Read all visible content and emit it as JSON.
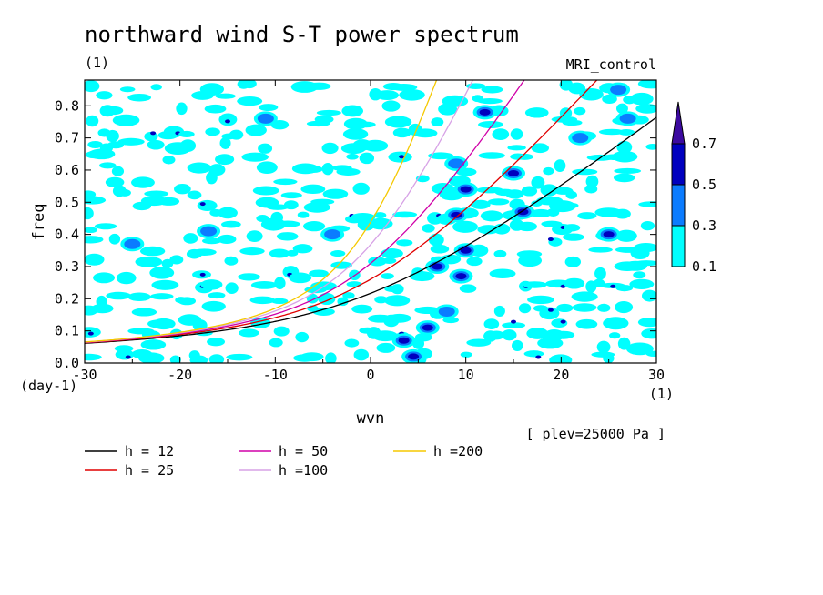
{
  "chart_data": {
    "type": "heatmap",
    "title": "northward wind S-T power spectrum",
    "subtitle_left": "(1)",
    "subtitle_right": "MRI_control",
    "xlabel": "wvn",
    "ylabel": "freq",
    "x_unit": "(1)",
    "y_unit": "(day-1)",
    "footnote": "[ plev=25000 Pa ]",
    "xlim": [
      -30,
      30
    ],
    "ylim": [
      0,
      0.88
    ],
    "x_ticks": [
      -30,
      -20,
      -10,
      0,
      10,
      20,
      30
    ],
    "y_ticks": [
      0.0,
      0.1,
      0.2,
      0.3,
      0.4,
      0.5,
      0.6,
      0.7,
      0.8
    ],
    "x_tick_labels": [
      "-30",
      "-20",
      "-10",
      "0",
      "10",
      "20",
      "30"
    ],
    "y_tick_labels": [
      "0.0",
      "0.1",
      "0.2",
      "0.3",
      "0.4",
      "0.5",
      "0.6",
      "0.7",
      "0.8"
    ],
    "colorbar": {
      "levels": [
        0.1,
        0.3,
        0.5,
        0.7
      ],
      "level_labels": [
        "0.1",
        "0.3",
        "0.5",
        "0.7"
      ],
      "colors": [
        "#00ffff",
        "#0b7cff",
        "#0000bf",
        "#3c0aa0"
      ]
    },
    "hotspots": [
      {
        "x": 4.5,
        "y": 0.02,
        "value": 0.6
      },
      {
        "x": 3.5,
        "y": 0.07,
        "value": 0.62
      },
      {
        "x": 6.0,
        "y": 0.11,
        "value": 0.6
      },
      {
        "x": 8.0,
        "y": 0.16,
        "value": 0.45
      },
      {
        "x": 9.5,
        "y": 0.27,
        "value": 0.55
      },
      {
        "x": 10.0,
        "y": 0.35,
        "value": 0.58
      },
      {
        "x": 9.0,
        "y": 0.46,
        "value": 0.55
      },
      {
        "x": 10.0,
        "y": 0.54,
        "value": 0.5
      },
      {
        "x": 15.0,
        "y": 0.59,
        "value": 0.62
      },
      {
        "x": 12.0,
        "y": 0.78,
        "value": 0.58
      },
      {
        "x": 9.0,
        "y": 0.62,
        "value": 0.45
      },
      {
        "x": 16.0,
        "y": 0.47,
        "value": 0.5
      },
      {
        "x": 22.0,
        "y": 0.7,
        "value": 0.45
      },
      {
        "x": 27.0,
        "y": 0.76,
        "value": 0.45
      },
      {
        "x": 25.0,
        "y": 0.4,
        "value": 0.5
      },
      {
        "x": -11.0,
        "y": 0.76,
        "value": 0.45
      },
      {
        "x": -25.0,
        "y": 0.37,
        "value": 0.45
      },
      {
        "x": -17.0,
        "y": 0.41,
        "value": 0.45
      },
      {
        "x": 26.0,
        "y": 0.85,
        "value": 0.45
      },
      {
        "x": -4.0,
        "y": 0.4,
        "value": 0.45
      },
      {
        "x": 7.0,
        "y": 0.3,
        "value": 0.5
      }
    ],
    "series": [
      {
        "name": "h = 12",
        "h": 12,
        "color": "#000000"
      },
      {
        "name": "h = 25",
        "h": 25,
        "color": "#e00000"
      },
      {
        "name": "h = 50",
        "h": 50,
        "color": "#d000a8"
      },
      {
        "name": "h =100",
        "h": 100,
        "color": "#d7a2e6"
      },
      {
        "name": "h =200",
        "h": 200,
        "color": "#f5c800"
      }
    ]
  }
}
